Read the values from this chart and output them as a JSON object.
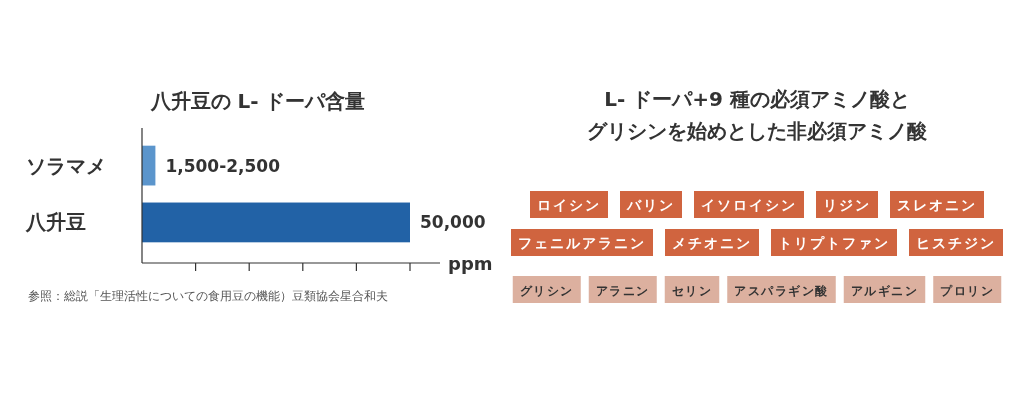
{
  "chart_data": [
    {
      "type": "bar",
      "orientation": "horizontal",
      "title": "八升豆の L- ドーパ含量",
      "xlabel": "ppm",
      "categories": [
        "ソラマメ",
        "八升豆"
      ],
      "values": [
        2500,
        50000
      ],
      "colors": [
        "#5b95cc",
        "#2262a6"
      ],
      "value_labels": [
        "1,500-2,500",
        "50,000"
      ],
      "xlim": [
        0,
        50000
      ],
      "xticks": [
        {
          "value": 10000,
          "label": null
        },
        {
          "value": 20000,
          "label": null
        },
        {
          "value": 30000,
          "label": null
        },
        {
          "value": 40000,
          "label": null
        },
        {
          "value": 50000,
          "label": null
        }
      ],
      "tick_labels": "y",
      "annotations": [
        "参照：総説「生理活性についての食用豆の機能）豆類協会星合和夫"
      ]
    },
    {
      "type": "other",
      "title": "L- ドーパ+9 種の必須アミノ酸とグリシンを始めとした非必須アミノ酸",
      "annotations": [
        "ロイシン",
        "バリン",
        "イソロイシン",
        "リジン",
        "スレオニン",
        "フェニルアラニン",
        "メチオニン",
        "トリプトファン",
        "ヒスチジン",
        "グリシン",
        "アラニン",
        "セリン",
        "アスパラギン酸",
        "アルギニン",
        "プロリン"
      ]
    }
  ]
}
